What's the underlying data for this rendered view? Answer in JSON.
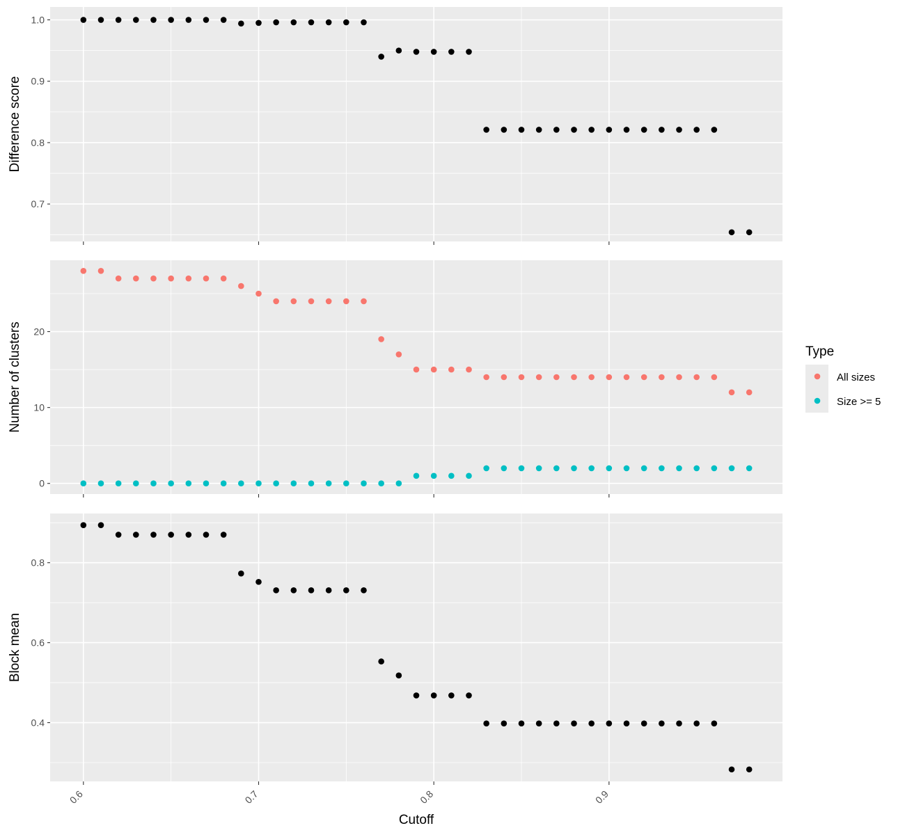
{
  "chart_data": {
    "type": "scatter",
    "xlabel": "Cutoff",
    "x": [
      0.6,
      0.61,
      0.62,
      0.63,
      0.64,
      0.65,
      0.66,
      0.67,
      0.68,
      0.69,
      0.7,
      0.71,
      0.72,
      0.73,
      0.74,
      0.75,
      0.76,
      0.77,
      0.78,
      0.79,
      0.8,
      0.81,
      0.82,
      0.83,
      0.84,
      0.85,
      0.86,
      0.87,
      0.88,
      0.89,
      0.9,
      0.91,
      0.92,
      0.93,
      0.94,
      0.95,
      0.96,
      0.97,
      0.98
    ],
    "xticks": [
      "0.6",
      "0.7",
      "0.8",
      "0.9"
    ],
    "xlim": [
      0.581,
      0.999
    ],
    "panels": [
      {
        "ylabel": "Difference score",
        "ylim": [
          0.639,
          1.021
        ],
        "yticks": [
          "0.7",
          "0.8",
          "0.9",
          "1.0"
        ],
        "series": [
          {
            "color": "#000000",
            "values": [
              1.0,
              1.0,
              1.0,
              1.0,
              1.0,
              1.0,
              1.0,
              1.0,
              1.0,
              0.994,
              0.995,
              0.996,
              0.996,
              0.996,
              0.996,
              0.996,
              0.996,
              0.94,
              0.95,
              0.948,
              0.948,
              0.948,
              0.948,
              0.821,
              0.821,
              0.821,
              0.821,
              0.821,
              0.821,
              0.821,
              0.821,
              0.821,
              0.821,
              0.821,
              0.821,
              0.821,
              0.821,
              0.654,
              0.654
            ]
          }
        ]
      },
      {
        "ylabel": "Number of clusters",
        "ylim": [
          -1.4,
          29.4
        ],
        "yticks": [
          "0",
          "10",
          "20"
        ],
        "series": [
          {
            "name": "All sizes",
            "color": "#F8766D",
            "values": [
              28,
              28,
              27,
              27,
              27,
              27,
              27,
              27,
              27,
              26,
              25,
              24,
              24,
              24,
              24,
              24,
              24,
              19,
              17,
              15,
              15,
              15,
              15,
              14,
              14,
              14,
              14,
              14,
              14,
              14,
              14,
              14,
              14,
              14,
              14,
              14,
              14,
              12,
              12
            ]
          },
          {
            "name": "Size >= 5",
            "color": "#00BFC4",
            "values": [
              0,
              0,
              0,
              0,
              0,
              0,
              0,
              0,
              0,
              0,
              0,
              0,
              0,
              0,
              0,
              0,
              0,
              0,
              0,
              1,
              1,
              1,
              1,
              2,
              2,
              2,
              2,
              2,
              2,
              2,
              2,
              2,
              2,
              2,
              2,
              2,
              2,
              2,
              2
            ]
          }
        ]
      },
      {
        "ylabel": "Block mean",
        "ylim": [
          0.253,
          0.923
        ],
        "yticks": [
          "0.4",
          "0.6",
          "0.8"
        ],
        "series": [
          {
            "color": "#000000",
            "values": [
              0.894,
              0.894,
              0.87,
              0.87,
              0.87,
              0.87,
              0.87,
              0.87,
              0.87,
              0.773,
              0.752,
              0.731,
              0.731,
              0.731,
              0.731,
              0.731,
              0.731,
              0.553,
              0.518,
              0.468,
              0.468,
              0.468,
              0.468,
              0.398,
              0.398,
              0.398,
              0.398,
              0.398,
              0.398,
              0.398,
              0.398,
              0.398,
              0.398,
              0.398,
              0.398,
              0.398,
              0.398,
              0.283,
              0.283
            ]
          }
        ]
      }
    ],
    "legend": {
      "title": "Type",
      "position": "right",
      "entries": [
        {
          "label": "All sizes",
          "color": "#F8766D"
        },
        {
          "label": "Size >= 5",
          "color": "#00BFC4"
        }
      ]
    },
    "grid": true,
    "panel_background": "#EBEBEB"
  }
}
